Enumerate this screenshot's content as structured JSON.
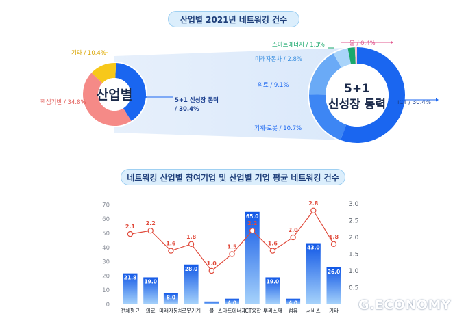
{
  "header": {
    "title": "산업별 2021년 네트워킹 건수"
  },
  "donut_left": {
    "center_label": "산업별",
    "slices": [
      {
        "label": "5+1 신성장 동력",
        "label_lines": [
          "5+1 신성장 동력",
          "/ 30.4%"
        ],
        "pct": 30.4,
        "color": "#1a66f0"
      },
      {
        "label": "핵심기반",
        "label_lines": [
          "핵심기반 / 34.8%"
        ],
        "pct": 34.8,
        "color": "#f58a87"
      },
      {
        "label": "기타",
        "label_lines": [
          "기타 / 10.4%"
        ],
        "pct": 10.4,
        "color": "#f7c81a"
      }
    ]
  },
  "donut_right": {
    "center_label_line1": "5+1",
    "center_label_line2": "신성장 동력",
    "slices": [
      {
        "label": "ICT",
        "text": "ICT / 30.4%",
        "pct": 30.4,
        "color": "#1a66f0"
      },
      {
        "label": "기계·로봇",
        "text": "기계·로봇 / 10.7%",
        "pct": 10.7,
        "color": "#3d86f4"
      },
      {
        "label": "의료",
        "text": "의료 / 9.1%",
        "pct": 9.1,
        "color": "#6aaaf6"
      },
      {
        "label": "미래자동차",
        "text": "미래자동차 / 2.8%",
        "pct": 2.8,
        "color": "#a9d4fa"
      },
      {
        "label": "스마트에너지",
        "text": "스마트에너지 / 1.3%",
        "pct": 1.3,
        "color": "#1aa86c"
      },
      {
        "label": "물",
        "text": "물 / 0.4%",
        "pct": 0.4,
        "color": "#f7bfd3"
      }
    ]
  },
  "chart_title": "네트워킹 산업별 참여기업 및 산업별 기업 평균 네트워킹 건수",
  "chart_data": {
    "type": "bar",
    "categories": [
      "전체평균",
      "의료",
      "미래자동차",
      "로봇기계",
      "물",
      "스마트에너지",
      "ICT융합",
      "뿌리소재",
      "섬유",
      "서비스",
      "기타"
    ],
    "series": [
      {
        "values": [
          21.8,
          19.0,
          8.0,
          28.0,
          2.0,
          4.0,
          65.0,
          19.0,
          4.0,
          43.0,
          26.0
        ],
        "color": "#1a66f0",
        "axis": "left"
      },
      {
        "values": [
          2.1,
          2.2,
          1.6,
          1.8,
          1.0,
          1.5,
          2.2,
          1.6,
          2.0,
          2.8,
          1.8
        ],
        "color": "#e04a3b",
        "axis": "right",
        "type": "line"
      }
    ],
    "y_left": {
      "range": [
        0,
        70
      ],
      "ticks": [
        0,
        10,
        20,
        30,
        40,
        50,
        60,
        70
      ]
    },
    "y_right": {
      "range": [
        0,
        3.0
      ],
      "ticks": [
        "0.5",
        "1.0",
        "1.5",
        "2.0",
        "2.5",
        "3.0"
      ]
    },
    "grid": false
  },
  "watermark": "G.ECONOMY"
}
